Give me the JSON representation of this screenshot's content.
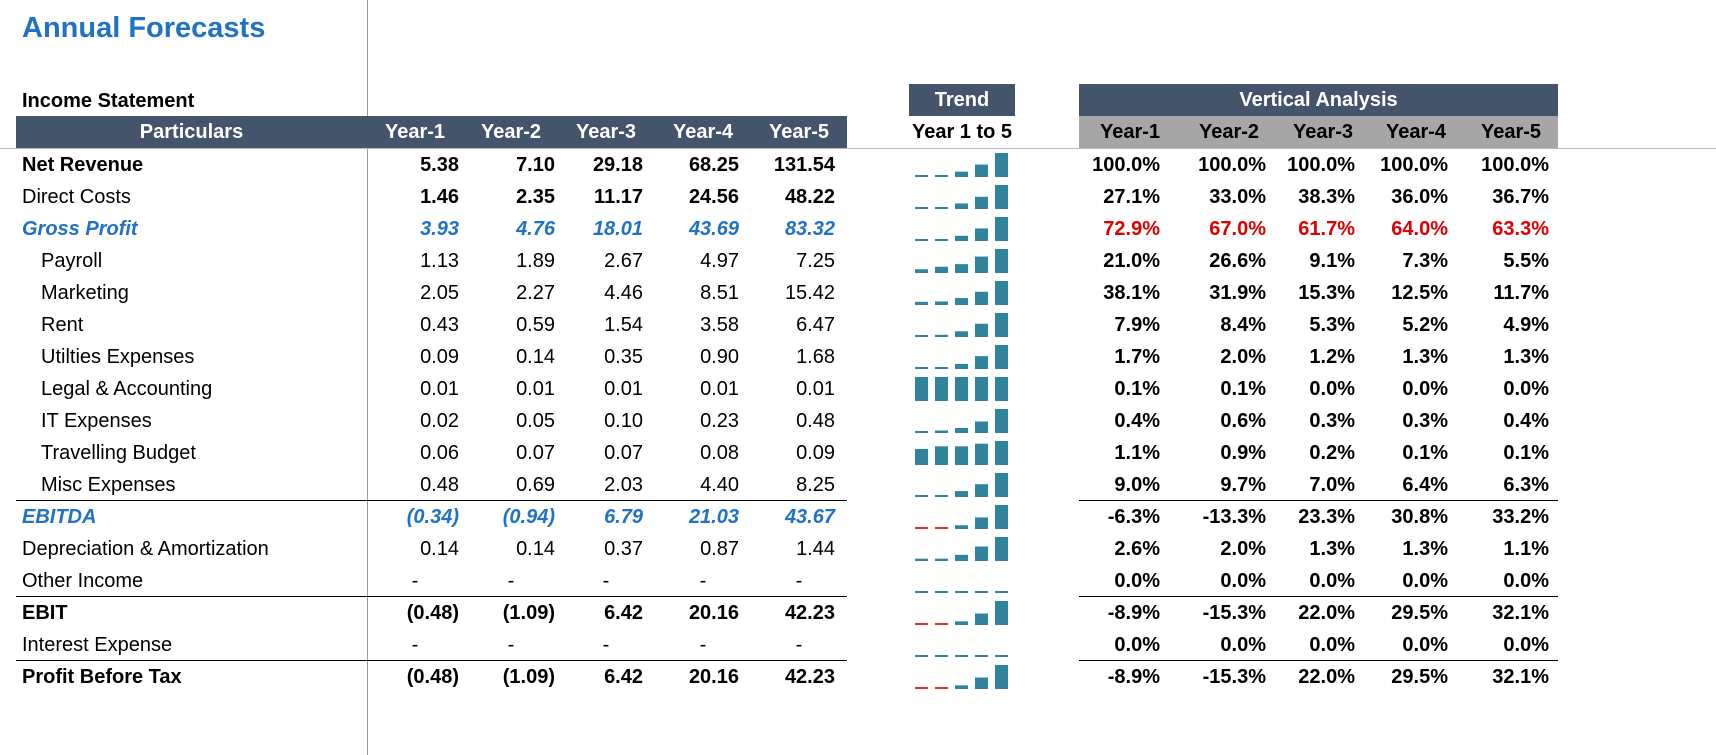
{
  "title": "Annual Forecasts",
  "section": "Income Statement",
  "trend_header": "Trend",
  "trend_subheader": "Year 1 to 5",
  "vertical_header": "Vertical Analysis",
  "columns": [
    "Particulars",
    "Year-1",
    "Year-2",
    "Year-3",
    "Year-4",
    "Year-5"
  ],
  "vertical_columns": [
    "Year-1",
    "Year-2",
    "Year-3",
    "Year-4",
    "Year-5"
  ],
  "rows": [
    {
      "label": "Net Revenue",
      "values": [
        5.38,
        7.1,
        29.18,
        68.25,
        131.54
      ],
      "value_labels": [
        "5.38",
        "7.10",
        "29.18",
        "68.25",
        "131.54"
      ],
      "vertical": [
        "100.0%",
        "100.0%",
        "100.0%",
        "100.0%",
        "100.0%"
      ]
    },
    {
      "label": "Direct Costs",
      "values": [
        1.46,
        2.35,
        11.17,
        24.56,
        48.22
      ],
      "value_labels": [
        "1.46",
        "2.35",
        "11.17",
        "24.56",
        "48.22"
      ],
      "vertical": [
        "27.1%",
        "33.0%",
        "38.3%",
        "36.0%",
        "36.7%"
      ]
    },
    {
      "label": "Gross Profit",
      "values": [
        3.93,
        4.76,
        18.01,
        43.69,
        83.32
      ],
      "value_labels": [
        "3.93",
        "4.76",
        "18.01",
        "43.69",
        "83.32"
      ],
      "vertical": [
        "72.9%",
        "67.0%",
        "61.7%",
        "64.0%",
        "63.3%"
      ]
    },
    {
      "label": "Payroll",
      "values": [
        1.13,
        1.89,
        2.67,
        4.97,
        7.25
      ],
      "value_labels": [
        "1.13",
        "1.89",
        "2.67",
        "4.97",
        "7.25"
      ],
      "vertical": [
        "21.0%",
        "26.6%",
        "9.1%",
        "7.3%",
        "5.5%"
      ]
    },
    {
      "label": "Marketing",
      "values": [
        2.05,
        2.27,
        4.46,
        8.51,
        15.42
      ],
      "value_labels": [
        "2.05",
        "2.27",
        "4.46",
        "8.51",
        "15.42"
      ],
      "vertical": [
        "38.1%",
        "31.9%",
        "15.3%",
        "12.5%",
        "11.7%"
      ]
    },
    {
      "label": "Rent",
      "values": [
        0.43,
        0.59,
        1.54,
        3.58,
        6.47
      ],
      "value_labels": [
        "0.43",
        "0.59",
        "1.54",
        "3.58",
        "6.47"
      ],
      "vertical": [
        "7.9%",
        "8.4%",
        "5.3%",
        "5.2%",
        "4.9%"
      ]
    },
    {
      "label": "Utilties Expenses",
      "values": [
        0.09,
        0.14,
        0.35,
        0.9,
        1.68
      ],
      "value_labels": [
        "0.09",
        "0.14",
        "0.35",
        "0.90",
        "1.68"
      ],
      "vertical": [
        "1.7%",
        "2.0%",
        "1.2%",
        "1.3%",
        "1.3%"
      ]
    },
    {
      "label": "Legal & Accounting",
      "values": [
        0.01,
        0.01,
        0.01,
        0.01,
        0.01
      ],
      "value_labels": [
        "0.01",
        "0.01",
        "0.01",
        "0.01",
        "0.01"
      ],
      "vertical": [
        "0.1%",
        "0.1%",
        "0.0%",
        "0.0%",
        "0.0%"
      ]
    },
    {
      "label": "IT Expenses",
      "values": [
        0.02,
        0.05,
        0.1,
        0.23,
        0.48
      ],
      "value_labels": [
        "0.02",
        "0.05",
        "0.10",
        "0.23",
        "0.48"
      ],
      "vertical": [
        "0.4%",
        "0.6%",
        "0.3%",
        "0.3%",
        "0.4%"
      ]
    },
    {
      "label": "Travelling Budget",
      "values": [
        0.06,
        0.07,
        0.07,
        0.08,
        0.09
      ],
      "value_labels": [
        "0.06",
        "0.07",
        "0.07",
        "0.08",
        "0.09"
      ],
      "vertical": [
        "1.1%",
        "0.9%",
        "0.2%",
        "0.1%",
        "0.1%"
      ]
    },
    {
      "label": "Misc Expenses",
      "values": [
        0.48,
        0.69,
        2.03,
        4.4,
        8.25
      ],
      "value_labels": [
        "0.48",
        "0.69",
        "2.03",
        "4.40",
        "8.25"
      ],
      "vertical": [
        "9.0%",
        "9.7%",
        "7.0%",
        "6.4%",
        "6.3%"
      ]
    },
    {
      "label": "EBITDA",
      "values": [
        -0.34,
        -0.94,
        6.79,
        21.03,
        43.67
      ],
      "value_labels": [
        "(0.34)",
        "(0.94)",
        "6.79",
        "21.03",
        "43.67"
      ],
      "vertical": [
        "-6.3%",
        "-13.3%",
        "23.3%",
        "30.8%",
        "33.2%"
      ]
    },
    {
      "label": "Depreciation & Amortization",
      "values": [
        0.14,
        0.14,
        0.37,
        0.87,
        1.44
      ],
      "value_labels": [
        "0.14",
        "0.14",
        "0.37",
        "0.87",
        "1.44"
      ],
      "vertical": [
        "2.6%",
        "2.0%",
        "1.3%",
        "1.3%",
        "1.1%"
      ]
    },
    {
      "label": "Other Income",
      "values": [
        0,
        0,
        0,
        0,
        0
      ],
      "value_labels": [
        "-",
        "-",
        "-",
        "-",
        "-"
      ],
      "vertical": [
        "0.0%",
        "0.0%",
        "0.0%",
        "0.0%",
        "0.0%"
      ]
    },
    {
      "label": "EBIT",
      "values": [
        -0.48,
        -1.09,
        6.42,
        20.16,
        42.23
      ],
      "value_labels": [
        "(0.48)",
        "(1.09)",
        "6.42",
        "20.16",
        "42.23"
      ],
      "vertical": [
        "-8.9%",
        "-15.3%",
        "22.0%",
        "29.5%",
        "32.1%"
      ]
    },
    {
      "label": "Interest Expense",
      "values": [
        0,
        0,
        0,
        0,
        0
      ],
      "value_labels": [
        "-",
        "-",
        "-",
        "-",
        "-"
      ],
      "vertical": [
        "0.0%",
        "0.0%",
        "0.0%",
        "0.0%",
        "0.0%"
      ]
    },
    {
      "label": "Profit Before Tax",
      "values": [
        -0.48,
        -1.09,
        6.42,
        20.16,
        42.23
      ],
      "value_labels": [
        "(0.48)",
        "(1.09)",
        "6.42",
        "20.16",
        "42.23"
      ],
      "vertical": [
        "-8.9%",
        "-15.3%",
        "22.0%",
        "29.5%",
        "32.1%"
      ]
    }
  ]
}
